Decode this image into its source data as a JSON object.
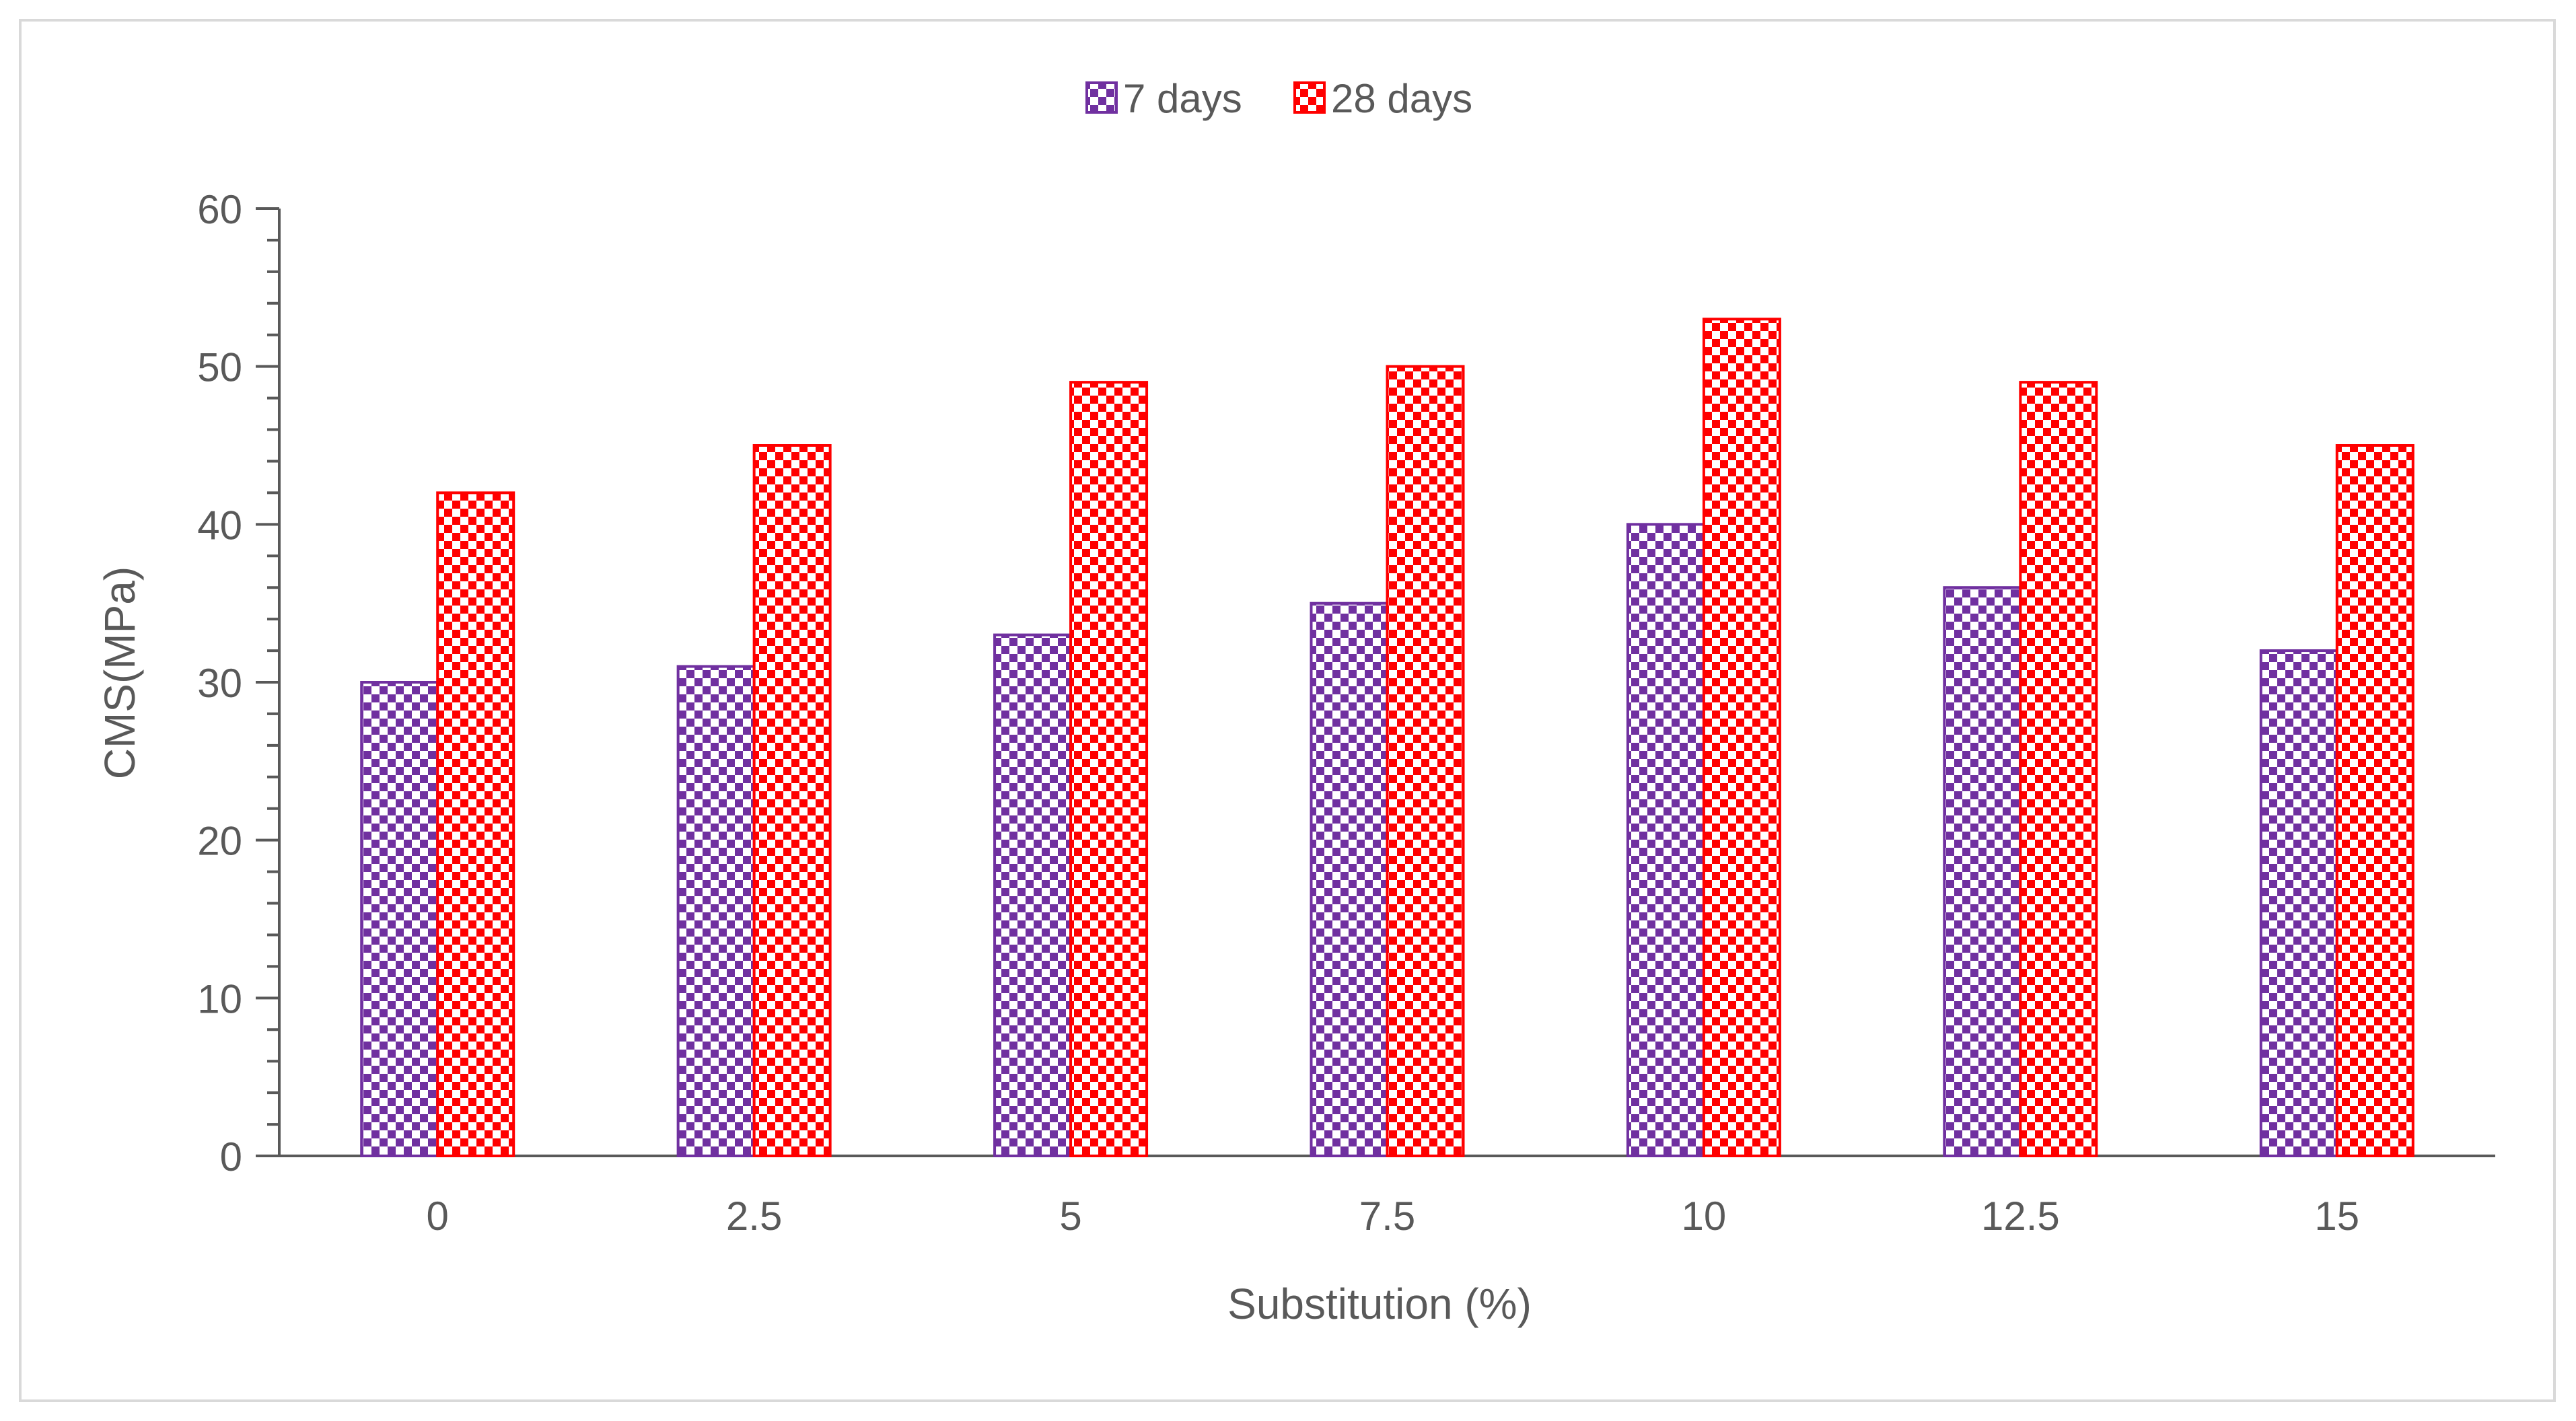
{
  "chart_data": {
    "type": "bar",
    "title": "",
    "xlabel": "Substitution (%)",
    "ylabel": "CMS(MPa)",
    "categories": [
      "0",
      "2.5",
      "5",
      "7.5",
      "10",
      "12.5",
      "15"
    ],
    "series": [
      {
        "name": "7 days",
        "values": [
          30,
          31,
          33,
          35,
          40,
          36,
          32
        ],
        "color": "#7030a0"
      },
      {
        "name": "28 days",
        "values": [
          42,
          45,
          49,
          50,
          53,
          49,
          45
        ],
        "color": "#ff0000"
      }
    ],
    "ylim": [
      0,
      60
    ],
    "yticks": [
      0,
      10,
      20,
      30,
      40,
      50,
      60
    ],
    "legend_position": "top-center",
    "grid": false
  }
}
